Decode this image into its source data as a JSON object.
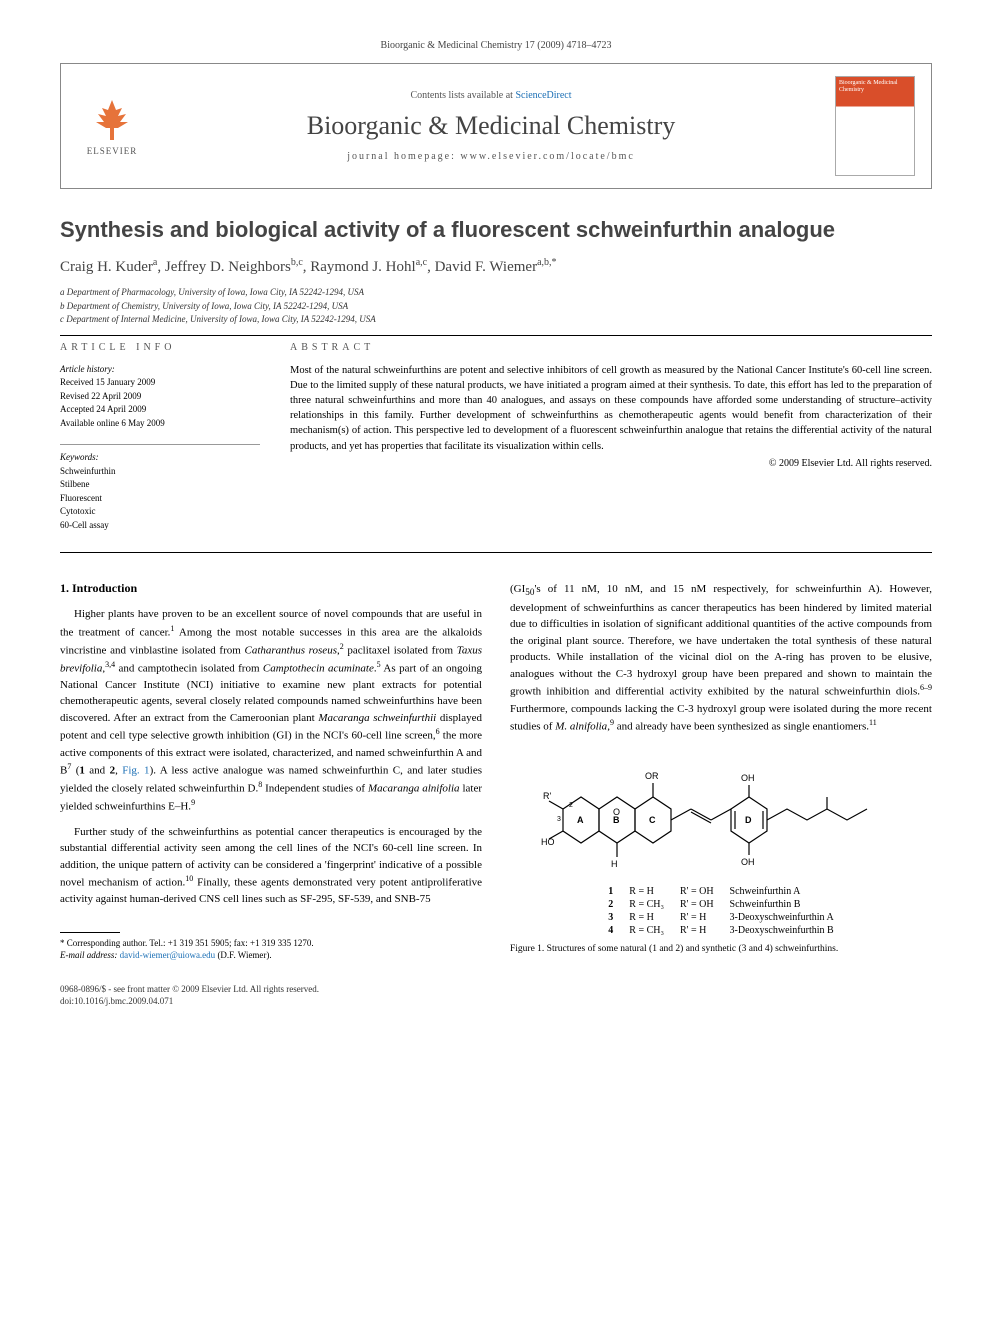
{
  "running_header": "Bioorganic & Medicinal Chemistry 17 (2009) 4718–4723",
  "masthead": {
    "contents_prefix": "Contents lists available at ",
    "contents_link": "ScienceDirect",
    "publisher_label": "ELSEVIER",
    "journal_name": "Bioorganic & Medicinal Chemistry",
    "homepage_label": "journal homepage: www.elsevier.com/locate/bmc",
    "cover_text": "Bioorganic & Medicinal Chemistry"
  },
  "article": {
    "title": "Synthesis and biological activity of a fluorescent schweinfurthin analogue",
    "authors_html": "Craig H. Kuder<sup>a</sup>, Jeffrey D. Neighbors<sup>b,c</sup>, Raymond J. Hohl<sup>a,c</sup>, David F. Wiemer<sup>a,b,*</sup>",
    "affiliations": [
      "a Department of Pharmacology, University of Iowa, Iowa City, IA 52242-1294, USA",
      "b Department of Chemistry, University of Iowa, Iowa City, IA 52242-1294, USA",
      "c Department of Internal Medicine, University of Iowa, Iowa City, IA 52242-1294, USA"
    ]
  },
  "info": {
    "label": "ARTICLE INFO",
    "history_label": "Article history:",
    "history": [
      "Received 15 January 2009",
      "Revised 22 April 2009",
      "Accepted 24 April 2009",
      "Available online 6 May 2009"
    ],
    "keywords_label": "Keywords:",
    "keywords": [
      "Schweinfurthin",
      "Stilbene",
      "Fluorescent",
      "Cytotoxic",
      "60-Cell assay"
    ]
  },
  "abstract": {
    "label": "ABSTRACT",
    "text": "Most of the natural schweinfurthins are potent and selective inhibitors of cell growth as measured by the National Cancer Institute's 60-cell line screen. Due to the limited supply of these natural products, we have initiated a program aimed at their synthesis. To date, this effort has led to the preparation of three natural schweinfurthins and more than 40 analogues, and assays on these compounds have afforded some understanding of structure–activity relationships in this family. Further development of schweinfurthins as chemotherapeutic agents would benefit from characterization of their mechanism(s) of action. This perspective led to development of a fluorescent schweinfurthin analogue that retains the differential activity of the natural products, and yet has properties that facilitate its visualization within cells.",
    "copyright": "© 2009 Elsevier Ltd. All rights reserved."
  },
  "section1": {
    "heading": "1. Introduction",
    "para1_html": "Higher plants have proven to be an excellent source of novel compounds that are useful in the treatment of cancer.<sup>1</sup> Among the most notable successes in this area are the alkaloids vincristine and vinblastine isolated from <em>Catharanthus roseus</em>,<sup>2</sup> paclitaxel isolated from <em>Taxus brevifolia</em>,<sup>3,4</sup> and camptothecin isolated from <em>Camptothecin acuminate</em>.<sup>5</sup> As part of an ongoing National Cancer Institute (NCI) initiative to examine new plant extracts for potential chemotherapeutic agents, several closely related compounds named schweinfurthins have been discovered. After an extract from the Cameroonian plant <em>Macaranga schweinfurthii</em> displayed potent and cell type selective growth inhibition (GI) in the NCI's 60-cell line screen,<sup>6</sup> the more active components of this extract were isolated, characterized, and named schweinfurthin A and B<sup>7</sup> (<strong>1</strong> and <strong>2</strong>, <a href=\"#\">Fig. 1</a>). A less active analogue was named schweinfurthin C, and later studies yielded the closely related schweinfurthin D.<sup>8</sup> Independent studies of <em>Macaranga alnifolia</em> later yielded schweinfurthins E–H.<sup>9</sup>",
    "para2_html": "Further study of the schweinfurthins as potential cancer therapeutics is encouraged by the substantial differential activity seen among the cell lines of the NCI's 60-cell line screen. In addition, the unique pattern of activity can be considered a 'fingerprint' indicative of a possible novel mechanism of action.<sup>10</sup> Finally, these agents demonstrated very potent antiproliferative activity against human-derived CNS cell lines such as SF-295, SF-539, and SNB-75",
    "para3_html": "(GI<sub>50</sub>'s of 11 nM, 10 nM, and 15 nM respectively, for schweinfurthin A). However, development of schweinfurthins as cancer therapeutics has been hindered by limited material due to difficulties in isolation of significant additional quantities of the active compounds from the original plant source. Therefore, we have undertaken the total synthesis of these natural products. While installation of the vicinal diol on the A-ring has proven to be elusive, analogues without the C-3 hydroxyl group have been prepared and shown to maintain the growth inhibition and differential activity exhibited by the natural schweinfurthin diols.<sup>6–9</sup> Furthermore, compounds lacking the C-3 hydroxyl group were isolated during the more recent studies of <em>M. alnifolia</em>,<sup>9</sup> and already have been synthesized as single enantiomers.<sup>11</sup>"
  },
  "figure1": {
    "compounds": [
      {
        "n": "1",
        "r": "R = H",
        "rp": "R' = OH",
        "name": "Schweinfurthin A"
      },
      {
        "n": "2",
        "r": "R = CH₃",
        "rp": "R' = OH",
        "name": "Schweinfurthin B"
      },
      {
        "n": "3",
        "r": "R = H",
        "rp": "R' = H",
        "name": "3-Deoxyschweinfurthin A"
      },
      {
        "n": "4",
        "r": "R = CH₃",
        "rp": "R' = H",
        "name": "3-Deoxyschweinfurthin B"
      }
    ],
    "caption": "Figure 1. Structures of some natural (1 and 2) and synthetic (3 and 4) schweinfurthins."
  },
  "footnote": {
    "corr": "* Corresponding author. Tel.: +1 319 351 5905; fax: +1 319 335 1270.",
    "email_label": "E-mail address:",
    "email": "david-wiemer@uiowa.edu",
    "email_suffix": "(D.F. Wiemer)."
  },
  "footer": {
    "line1": "0968-0896/$ - see front matter © 2009 Elsevier Ltd. All rights reserved.",
    "line2": "doi:10.1016/j.bmc.2009.04.071"
  }
}
